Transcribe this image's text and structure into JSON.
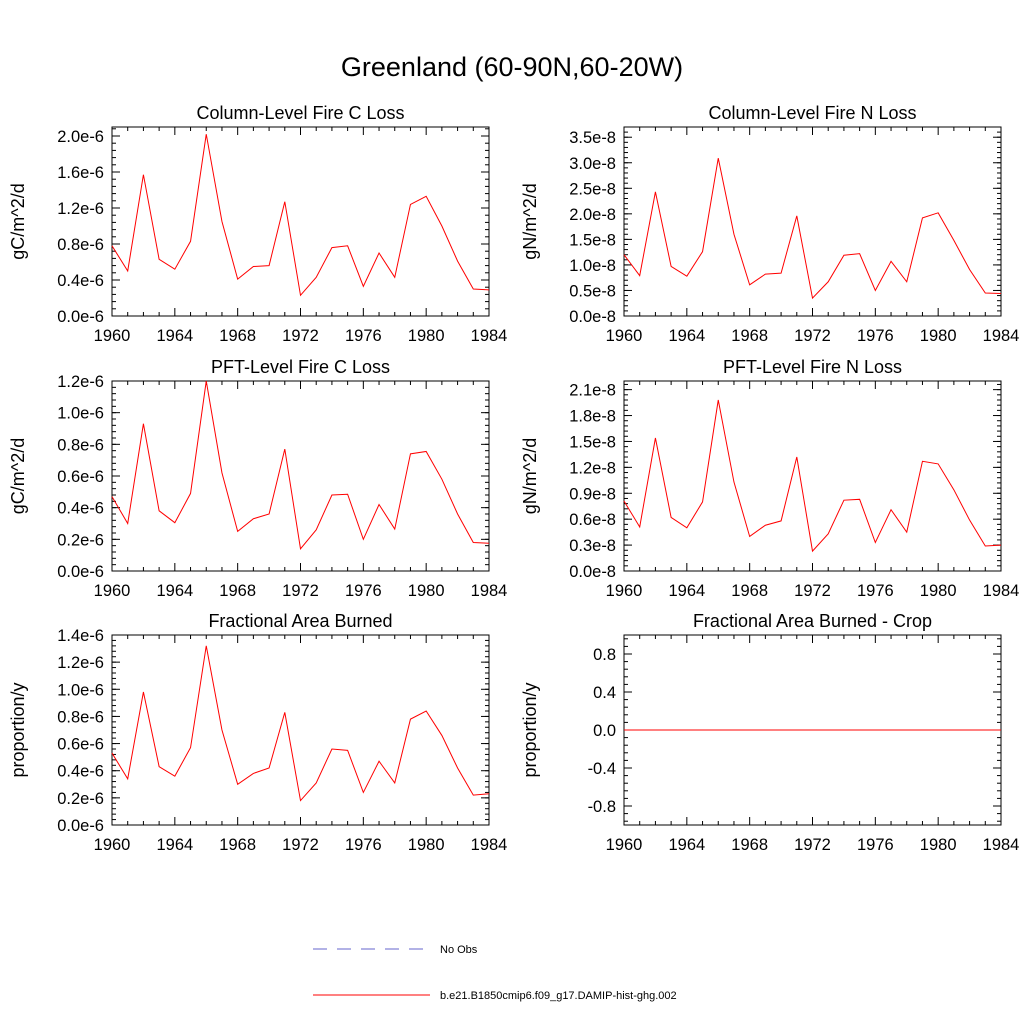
{
  "title": "Greenland (60-90N,60-20W)",
  "legend": [
    {
      "label": "No Obs",
      "color": "#6666cc",
      "dash": true
    },
    {
      "label": "b.e21.B1850cmip6.f09_g17.DAMIP-hist-ghg.002",
      "color": "#ff0000",
      "dash": false
    }
  ],
  "chart_data": [
    {
      "type": "line",
      "title": "Column-Level Fire C Loss",
      "ylabel": "gC/m^2/d",
      "xlim": [
        1960,
        1984
      ],
      "ylim": [
        0,
        2.1e-06
      ],
      "xticks": [
        "1960",
        "1964",
        "1968",
        "1972",
        "1976",
        "1980",
        "1984"
      ],
      "yticks": [
        0,
        4e-07,
        8e-07,
        1.2e-06,
        1.6e-06,
        2e-06
      ],
      "ytick_labels": [
        "0.0e-6",
        "0.4e-6",
        "0.8e-6",
        "1.2e-6",
        "1.6e-6",
        "2.0e-6"
      ],
      "x": [
        1960,
        1961,
        1962,
        1963,
        1964,
        1965,
        1966,
        1967,
        1968,
        1969,
        1970,
        1971,
        1972,
        1973,
        1974,
        1975,
        1976,
        1977,
        1978,
        1979,
        1980,
        1981,
        1982,
        1983,
        1984
      ],
      "series": [
        {
          "color": "#ff0000",
          "values": [
            7.8e-07,
            5e-07,
            1.57e-06,
            6.3e-07,
            5.2e-07,
            8.3e-07,
            2.02e-06,
            1.05e-06,
            4.1e-07,
            5.5e-07,
            5.6e-07,
            1.27e-06,
            2.3e-07,
            4.3e-07,
            7.6e-07,
            7.8e-07,
            3.3e-07,
            7e-07,
            4.3e-07,
            1.24e-06,
            1.33e-06,
            1e-06,
            6.1e-07,
            3e-07,
            2.9e-07
          ]
        }
      ]
    },
    {
      "type": "line",
      "title": "Column-Level Fire N Loss",
      "ylabel": "gN/m^2/d",
      "xlim": [
        1960,
        1984
      ],
      "ylim": [
        0,
        3.7e-08
      ],
      "xticks": [
        "1960",
        "1964",
        "1968",
        "1972",
        "1976",
        "1980",
        "1984"
      ],
      "yticks": [
        0,
        5e-09,
        1e-08,
        1.5e-08,
        2e-08,
        2.5e-08,
        3e-08,
        3.5e-08
      ],
      "ytick_labels": [
        "0.0e-8",
        "0.5e-8",
        "1.0e-8",
        "1.5e-8",
        "2.0e-8",
        "2.5e-8",
        "3.0e-8",
        "3.5e-8"
      ],
      "x": [
        1960,
        1961,
        1962,
        1963,
        1964,
        1965,
        1966,
        1967,
        1968,
        1969,
        1970,
        1971,
        1972,
        1973,
        1974,
        1975,
        1976,
        1977,
        1978,
        1979,
        1980,
        1981,
        1982,
        1983,
        1984
      ],
      "series": [
        {
          "color": "#ff0000",
          "values": [
            1.2e-08,
            7.9e-09,
            2.43e-08,
            9.7e-09,
            7.8e-09,
            1.26e-08,
            3.09e-08,
            1.6e-08,
            6.1e-09,
            8.2e-09,
            8.4e-09,
            1.96e-08,
            3.5e-09,
            6.7e-09,
            1.19e-08,
            1.22e-08,
            5e-09,
            1.07e-08,
            6.7e-09,
            1.92e-08,
            2.02e-08,
            1.48e-08,
            9.1e-09,
            4.5e-09,
            4.4e-09
          ]
        }
      ]
    },
    {
      "type": "line",
      "title": "PFT-Level Fire C Loss",
      "ylabel": "gC/m^2/d",
      "xlim": [
        1960,
        1984
      ],
      "ylim": [
        0,
        1.2e-06
      ],
      "xticks": [
        "1960",
        "1964",
        "1968",
        "1972",
        "1976",
        "1980",
        "1984"
      ],
      "yticks": [
        0,
        2e-07,
        4e-07,
        6e-07,
        8e-07,
        1e-06,
        1.2e-06
      ],
      "ytick_labels": [
        "0.0e-6",
        "0.2e-6",
        "0.4e-6",
        "0.6e-6",
        "0.8e-6",
        "1.0e-6",
        "1.2e-6"
      ],
      "x": [
        1960,
        1961,
        1962,
        1963,
        1964,
        1965,
        1966,
        1967,
        1968,
        1969,
        1970,
        1971,
        1972,
        1973,
        1974,
        1975,
        1976,
        1977,
        1978,
        1979,
        1980,
        1981,
        1982,
        1983,
        1984
      ],
      "series": [
        {
          "color": "#ff0000",
          "values": [
            4.7e-07,
            3e-07,
            9.3e-07,
            3.8e-07,
            3.05e-07,
            4.9e-07,
            1.2e-06,
            6.2e-07,
            2.5e-07,
            3.3e-07,
            3.6e-07,
            7.7e-07,
            1.4e-07,
            2.6e-07,
            4.8e-07,
            4.85e-07,
            2e-07,
            4.2e-07,
            2.65e-07,
            7.4e-07,
            7.55e-07,
            5.8e-07,
            3.6e-07,
            1.8e-07,
            1.75e-07
          ]
        }
      ]
    },
    {
      "type": "line",
      "title": "PFT-Level Fire N Loss",
      "ylabel": "gN/m^2/d",
      "xlim": [
        1960,
        1984
      ],
      "ylim": [
        0,
        2.2e-08
      ],
      "xticks": [
        "1960",
        "1964",
        "1968",
        "1972",
        "1976",
        "1980",
        "1984"
      ],
      "yticks": [
        0,
        3e-09,
        6e-09,
        9e-09,
        1.2e-08,
        1.5e-08,
        1.8e-08,
        2.1e-08
      ],
      "ytick_labels": [
        "0.0e-8",
        "0.3e-8",
        "0.6e-8",
        "0.9e-8",
        "1.2e-8",
        "1.5e-8",
        "1.8e-8",
        "2.1e-8"
      ],
      "x": [
        1960,
        1961,
        1962,
        1963,
        1964,
        1965,
        1966,
        1967,
        1968,
        1969,
        1970,
        1971,
        1972,
        1973,
        1974,
        1975,
        1976,
        1977,
        1978,
        1979,
        1980,
        1981,
        1982,
        1983,
        1984
      ],
      "series": [
        {
          "color": "#ff0000",
          "values": [
            8.1e-09,
            5.1e-09,
            1.54e-08,
            6.2e-09,
            5e-09,
            8e-09,
            1.98e-08,
            1.03e-08,
            4e-09,
            5.3e-09,
            5.8e-09,
            1.32e-08,
            2.3e-09,
            4.3e-09,
            8.2e-09,
            8.3e-09,
            3.3e-09,
            7.1e-09,
            4.5e-09,
            1.27e-08,
            1.24e-08,
            9.4e-09,
            5.9e-09,
            2.9e-09,
            3e-09
          ]
        }
      ]
    },
    {
      "type": "line",
      "title": "Fractional Area Burned",
      "ylabel": "proportion/y",
      "xlim": [
        1960,
        1984
      ],
      "ylim": [
        0,
        1.4e-06
      ],
      "xticks": [
        "1960",
        "1964",
        "1968",
        "1972",
        "1976",
        "1980",
        "1984"
      ],
      "yticks": [
        0,
        2e-07,
        4e-07,
        6e-07,
        8e-07,
        1e-06,
        1.2e-06,
        1.4e-06
      ],
      "ytick_labels": [
        "0.0e-6",
        "0.2e-6",
        "0.4e-6",
        "0.6e-6",
        "0.8e-6",
        "1.0e-6",
        "1.2e-6",
        "1.4e-6"
      ],
      "x": [
        1960,
        1961,
        1962,
        1963,
        1964,
        1965,
        1966,
        1967,
        1968,
        1969,
        1970,
        1971,
        1972,
        1973,
        1974,
        1975,
        1976,
        1977,
        1978,
        1979,
        1980,
        1981,
        1982,
        1983,
        1984
      ],
      "series": [
        {
          "color": "#ff0000",
          "values": [
            5.3e-07,
            3.4e-07,
            9.8e-07,
            4.3e-07,
            3.6e-07,
            5.7e-07,
            1.32e-06,
            7e-07,
            3e-07,
            3.8e-07,
            4.2e-07,
            8.3e-07,
            1.8e-07,
            3.1e-07,
            5.6e-07,
            5.5e-07,
            2.4e-07,
            4.7e-07,
            3.1e-07,
            7.8e-07,
            8.4e-07,
            6.6e-07,
            4.2e-07,
            2.2e-07,
            2.3e-07
          ]
        }
      ]
    },
    {
      "type": "line",
      "title": "Fractional Area Burned - Crop",
      "ylabel": "proportion/y",
      "xlim": [
        1960,
        1984
      ],
      "ylim": [
        -1.0,
        1.0
      ],
      "xticks": [
        "1960",
        "1964",
        "1968",
        "1972",
        "1976",
        "1980",
        "1984"
      ],
      "yticks": [
        -0.8,
        -0.4,
        0.0,
        0.4,
        0.8
      ],
      "ytick_labels": [
        "-0.8",
        "-0.4",
        "0.0",
        "0.4",
        "0.8"
      ],
      "x": [
        1960,
        1984
      ],
      "series": [
        {
          "color": "#ff0000",
          "values": [
            0,
            0
          ]
        }
      ]
    }
  ]
}
